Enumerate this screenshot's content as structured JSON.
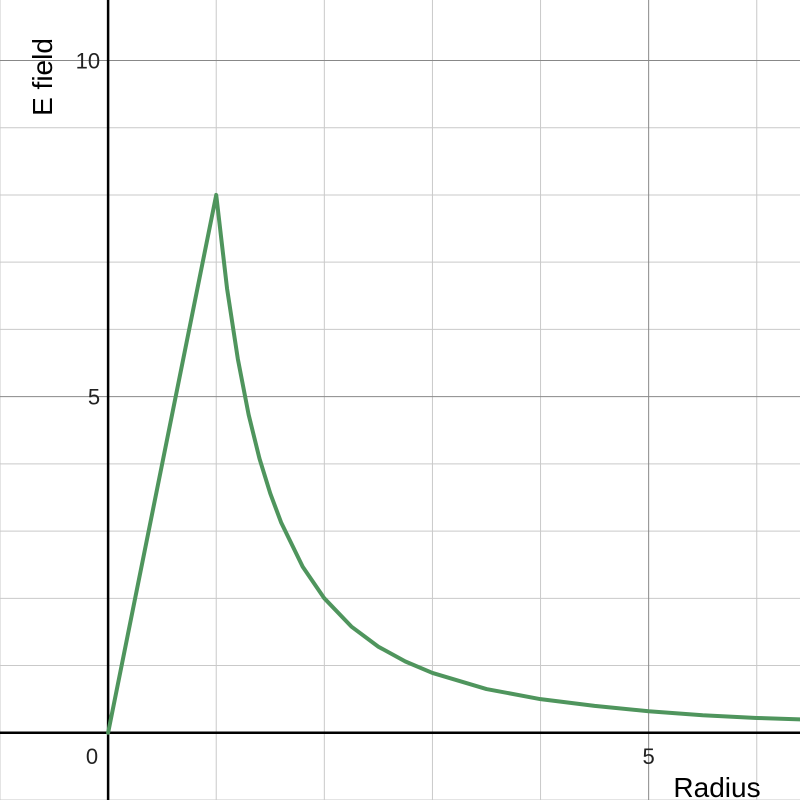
{
  "chart_data": {
    "type": "line",
    "title": "",
    "xlabel": "Radius",
    "ylabel": "E field",
    "xlim": [
      -1,
      6.4
    ],
    "ylim": [
      -1,
      10.9
    ],
    "grid": true,
    "minor_step": 1,
    "xticks": [
      {
        "value": 5,
        "label": "5"
      }
    ],
    "yticks": [
      {
        "value": 5,
        "label": "5"
      },
      {
        "value": 10,
        "label": "10"
      }
    ],
    "origin_label": "0",
    "series": [
      {
        "color": "#4f955d",
        "x": [
          0,
          1,
          1.1,
          1.2,
          1.3,
          1.4,
          1.5,
          1.6,
          1.8,
          2,
          2.25,
          2.5,
          2.75,
          3,
          3.5,
          4,
          4.5,
          5,
          5.5,
          6,
          6.4
        ],
        "y": [
          0,
          8,
          6.61,
          5.56,
          4.73,
          4.08,
          3.56,
          3.13,
          2.47,
          2.0,
          1.58,
          1.28,
          1.06,
          0.89,
          0.65,
          0.5,
          0.4,
          0.32,
          0.26,
          0.22,
          0.2
        ]
      }
    ]
  }
}
